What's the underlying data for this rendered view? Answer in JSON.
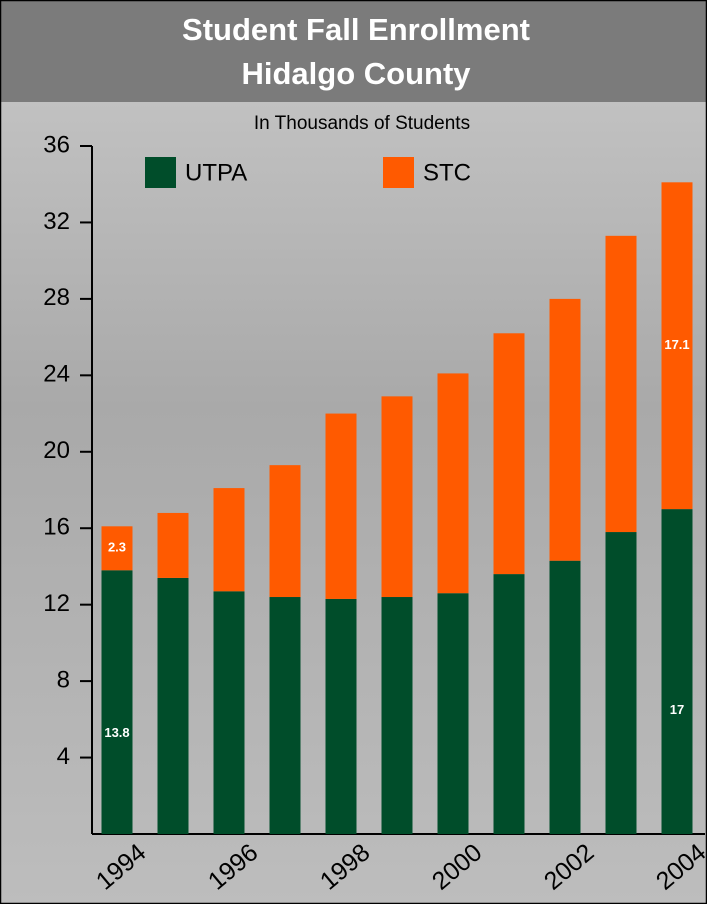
{
  "chart_data": {
    "type": "stacked_bar",
    "title": "Student Fall Enrollment",
    "subtitle": "Hidalgo County",
    "y_label": "In Thousands of Students",
    "categories": [
      "1994",
      null,
      "1996",
      null,
      "1998",
      null,
      "2000",
      null,
      "2002",
      null,
      "2004"
    ],
    "series": [
      {
        "name": "UTPA",
        "color": "#004d2a",
        "values": [
          13.8,
          13.4,
          12.7,
          12.4,
          12.3,
          12.4,
          12.6,
          13.6,
          14.3,
          15.8,
          17
        ],
        "value_labels": [
          "13.8",
          null,
          null,
          null,
          null,
          null,
          null,
          null,
          null,
          null,
          "17"
        ]
      },
      {
        "name": "STC",
        "color": "#ff5a00",
        "values": [
          2.3,
          3.4,
          5.4,
          6.9,
          9.7,
          10.5,
          11.5,
          12.6,
          13.7,
          15.5,
          17.1
        ],
        "value_labels": [
          "2.3",
          null,
          null,
          null,
          null,
          null,
          null,
          null,
          null,
          null,
          "17.1"
        ]
      }
    ],
    "ylim": [
      0,
      36
    ],
    "yticks": [
      4,
      8,
      12,
      16,
      20,
      24,
      28,
      32,
      36
    ]
  }
}
